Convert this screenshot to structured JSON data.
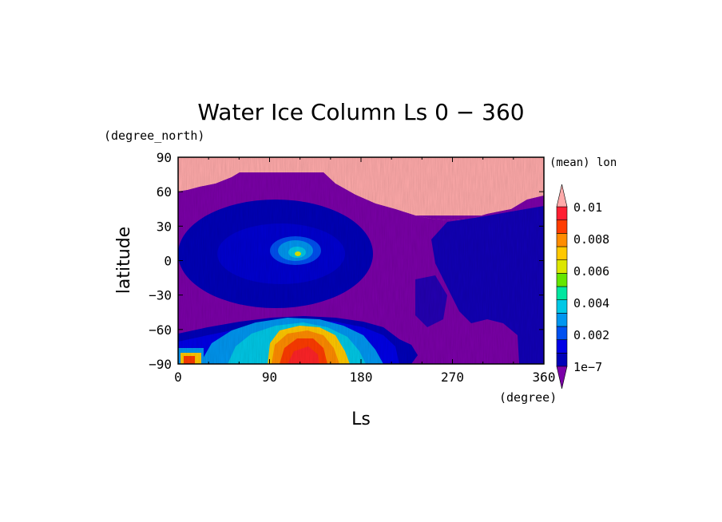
{
  "chart_data": {
    "type": "heatmap",
    "title": "Water Ice Column Ls 0 − 360",
    "xlabel": "Ls",
    "ylabel": "latitude",
    "x_units": "(degree)",
    "y_units": "(degree_north)",
    "colorbar_label": "(mean) lon",
    "xlim": [
      0,
      360
    ],
    "ylim": [
      -90,
      90
    ],
    "x_ticks": [
      "0",
      "90",
      "180",
      "270",
      "360"
    ],
    "y_ticks": [
      "90",
      "60",
      "30",
      "0",
      "−30",
      "−60",
      "−90"
    ],
    "x_tick_values": [
      0,
      90,
      180,
      270,
      360
    ],
    "y_tick_values": [
      90,
      60,
      30,
      0,
      -30,
      -60,
      -90
    ],
    "colorbar_ticks": [
      "0.01",
      "0.008",
      "0.006",
      "0.004",
      "0.002",
      "1e−7"
    ],
    "colorbar_tick_values": [
      0.01,
      0.008,
      0.006,
      0.004,
      0.002,
      0
    ],
    "colorbar_colors": [
      "#7b00a8",
      "#0000b8",
      "#0000e6",
      "#0050f0",
      "#0096f0",
      "#00c8e6",
      "#00e6a0",
      "#64e600",
      "#dce600",
      "#ffc800",
      "#ff8c00",
      "#ff3c00",
      "#ff1e32",
      "#ffaaaa"
    ],
    "regions": [
      {
        "name": "polar-mask",
        "color": "#ffaaaa"
      },
      {
        "name": "background-low",
        "color": "#7b00a8"
      },
      {
        "name": "equatorial-band",
        "color": "#0000b8"
      },
      {
        "name": "southern-high",
        "color": "#ff3c00"
      }
    ]
  }
}
